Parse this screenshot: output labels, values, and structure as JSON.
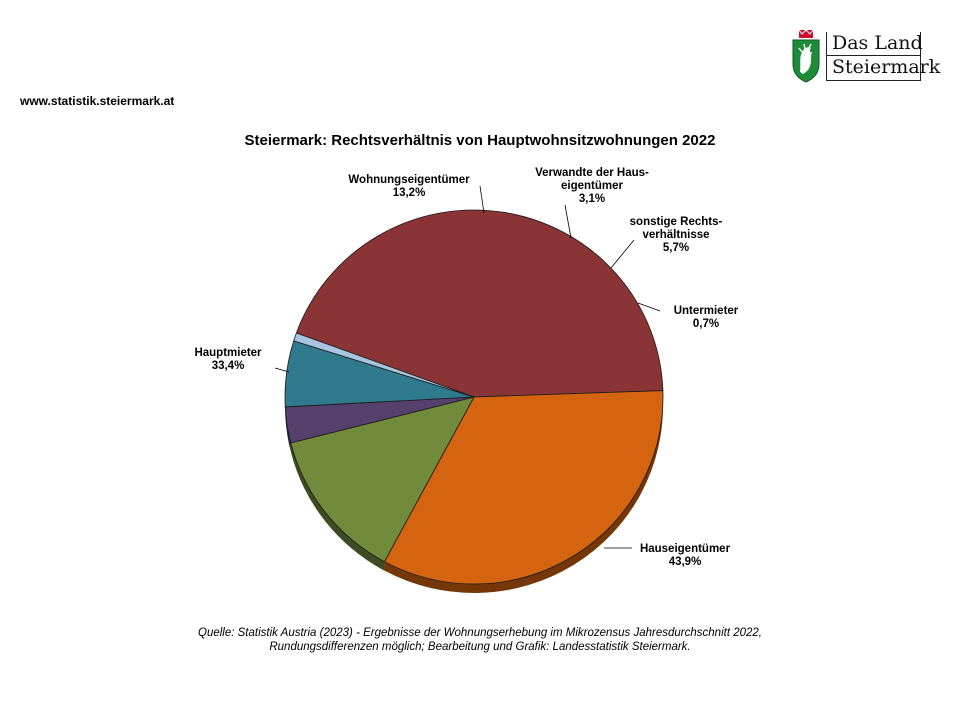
{
  "header": {
    "url": "www.statistik.steiermark.at",
    "logo": {
      "line1": "Das Land",
      "line2": "Steiermark",
      "crest": "styrian-panther-crest-icon"
    }
  },
  "chart_data": {
    "type": "pie",
    "title": "Steiermark: Rechtsverhältnis von Hauptwohnsitzwohnungen 2022",
    "slices": [
      {
        "name": "Hauseigentümer",
        "label_lines": [
          "Hauseigentümer",
          "43,9%"
        ],
        "value": 43.9,
        "color": "#8B3436"
      },
      {
        "name": "Hauptmieter",
        "label_lines": [
          "Hauptmieter",
          "33,4%"
        ],
        "value": 33.4,
        "color": "#D4640F"
      },
      {
        "name": "Wohnungseigentümer",
        "label_lines": [
          "Wohnungseigentümer",
          "13,2%"
        ],
        "value": 13.2,
        "color": "#718A3C"
      },
      {
        "name": "Verwandte der Hauseigentümer",
        "label_lines": [
          "Verwandte der Haus-",
          "eigentümer",
          "3,1%"
        ],
        "value": 3.1,
        "color": "#56406E"
      },
      {
        "name": "sonstige Rechtsverhältnisse",
        "label_lines": [
          "sonstige Rechts-",
          "verhältnisse",
          "5,7%"
        ],
        "value": 5.7,
        "color": "#2F7A8C"
      },
      {
        "name": "Untermieter",
        "label_lines": [
          "Untermieter",
          "0,7%"
        ],
        "value": 0.7,
        "color": "#A8C4E0"
      }
    ],
    "legend": "none"
  },
  "footer": {
    "source_line1": "Quelle: Statistik Austria (2023) - Ergebnisse der Wohnungserhebung im Mikrozensus Jahresdurchschnitt 2022,",
    "source_line2": "Rundungsdifferenzen möglich; Bearbeitung und Grafik: Landesstatistik Steiermark."
  }
}
